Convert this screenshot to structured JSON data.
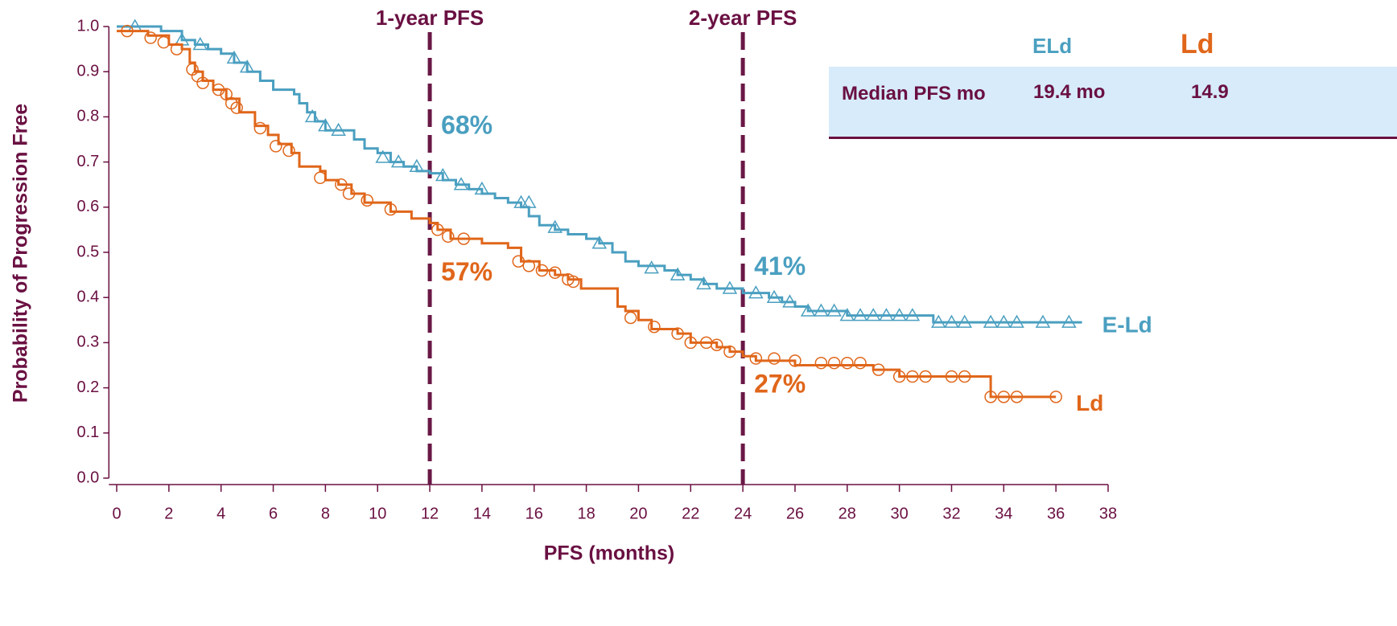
{
  "chart_data": {
    "type": "step",
    "x_label": "PFS (months)",
    "y_label": "Probability of Progression Free",
    "xlim": [
      -0.3,
      38
    ],
    "xticks": [
      0,
      2,
      4,
      6,
      8,
      10,
      12,
      14,
      16,
      18,
      20,
      22,
      24,
      26,
      28,
      30,
      32,
      34,
      36,
      38
    ],
    "ylim": [
      0,
      1
    ],
    "yticks": [
      {
        "value": 0,
        "label": "0.0"
      },
      0.1,
      0.2,
      0.3,
      0.4,
      0.5,
      0.6,
      0.7,
      0.8,
      0.9,
      {
        "value": 1,
        "label": "1.0"
      }
    ],
    "axis_color": "#6a1042",
    "reference_lines": [
      {
        "x": 12,
        "label": "1-year PFS"
      },
      {
        "x": 24,
        "label": "2-year PFS"
      }
    ],
    "series": [
      {
        "name": "E-Ld",
        "color": "#4a9fc0",
        "marker": "triangle",
        "x": [
          0,
          1.7,
          2.5,
          3,
          3.5,
          4,
          4.5,
          5,
          5.5,
          6,
          6.8,
          7,
          7.3,
          7.6,
          8,
          9.1,
          9.5,
          10,
          10.5,
          11,
          11.5,
          12,
          12.5,
          13,
          13.5,
          14,
          14.5,
          15,
          15.5,
          15.8,
          16.2,
          16.8,
          17.3,
          18,
          18.5,
          19,
          19.5,
          20,
          21,
          21.5,
          22,
          22.5,
          23,
          24,
          25,
          25.5,
          26,
          26.5,
          28,
          31.3,
          37
        ],
        "y": [
          1.0,
          0.99,
          0.97,
          0.96,
          0.95,
          0.94,
          0.92,
          0.9,
          0.88,
          0.86,
          0.85,
          0.83,
          0.81,
          0.79,
          0.77,
          0.75,
          0.73,
          0.72,
          0.7,
          0.69,
          0.68,
          0.675,
          0.66,
          0.65,
          0.64,
          0.63,
          0.62,
          0.61,
          0.6,
          0.58,
          0.56,
          0.55,
          0.54,
          0.53,
          0.52,
          0.5,
          0.48,
          0.47,
          0.46,
          0.45,
          0.44,
          0.43,
          0.42,
          0.41,
          0.4,
          0.39,
          0.38,
          0.37,
          0.36,
          0.345,
          0.345
        ],
        "censor_x": [
          0.7,
          2.5,
          3.2,
          4.5,
          5,
          7.5,
          8,
          8.5,
          10.2,
          10.8,
          11.5,
          12.5,
          13.2,
          14,
          15.5,
          15.8,
          16.8,
          18.5,
          20.5,
          21.5,
          22.5,
          23.5,
          24.5,
          25.2,
          25.8,
          26.5,
          27,
          27.5,
          28,
          28.5,
          29,
          29.5,
          30,
          30.5,
          31.5,
          32,
          32.5,
          33.5,
          34,
          34.5,
          35.5,
          36.5
        ],
        "censor_y": [
          1.0,
          0.97,
          0.96,
          0.93,
          0.91,
          0.8,
          0.78,
          0.77,
          0.71,
          0.7,
          0.69,
          0.67,
          0.65,
          0.64,
          0.61,
          0.61,
          0.555,
          0.52,
          0.465,
          0.45,
          0.43,
          0.42,
          0.41,
          0.4,
          0.39,
          0.37,
          0.37,
          0.37,
          0.36,
          0.36,
          0.36,
          0.36,
          0.36,
          0.36,
          0.345,
          0.345,
          0.345,
          0.345,
          0.345,
          0.345,
          0.345,
          0.345
        ],
        "landmark_values": [
          0.68,
          0.41
        ],
        "landmark_labels": [
          "68%",
          "41%"
        ]
      },
      {
        "name": "Ld",
        "color": "#e0661a",
        "marker": "circle",
        "x": [
          0,
          1.2,
          2,
          2.5,
          2.8,
          3,
          3.3,
          3.7,
          4.2,
          4.7,
          5.3,
          5.8,
          6.2,
          6.7,
          7,
          7.8,
          8,
          8.5,
          9,
          9.5,
          10.5,
          11.3,
          12,
          12.3,
          12.8,
          14,
          15,
          15.5,
          16.2,
          16.8,
          17.3,
          17.8,
          19,
          19.2,
          19.5,
          20,
          20.5,
          21.5,
          22,
          23,
          23.5,
          24,
          24.5,
          26,
          29,
          30,
          33.5,
          36
        ],
        "y": [
          0.99,
          0.98,
          0.96,
          0.95,
          0.92,
          0.9,
          0.88,
          0.86,
          0.84,
          0.81,
          0.78,
          0.76,
          0.74,
          0.72,
          0.69,
          0.68,
          0.66,
          0.65,
          0.63,
          0.61,
          0.59,
          0.575,
          0.565,
          0.55,
          0.53,
          0.52,
          0.51,
          0.48,
          0.46,
          0.45,
          0.44,
          0.42,
          0.42,
          0.38,
          0.37,
          0.35,
          0.33,
          0.32,
          0.3,
          0.29,
          0.28,
          0.27,
          0.26,
          0.25,
          0.24,
          0.225,
          0.18,
          0.18
        ],
        "censor_x": [
          0.4,
          1.3,
          1.8,
          2.3,
          2.9,
          3.1,
          3.3,
          3.9,
          4.2,
          4.4,
          4.6,
          5.5,
          6.1,
          6.6,
          7.8,
          8.6,
          8.9,
          9.6,
          10.5,
          12.3,
          12.7,
          13.3,
          15.4,
          15.8,
          16.3,
          16.8,
          17.3,
          17.5,
          19.7,
          20.6,
          21.5,
          22,
          22.6,
          23,
          23.5,
          24.5,
          25.2,
          26,
          27,
          27.5,
          28,
          28.5,
          29.2,
          30,
          30.5,
          31,
          32,
          32.5,
          33.5,
          34,
          34.5,
          36
        ],
        "censor_y": [
          0.99,
          0.975,
          0.965,
          0.95,
          0.905,
          0.89,
          0.875,
          0.86,
          0.85,
          0.83,
          0.82,
          0.775,
          0.735,
          0.725,
          0.665,
          0.65,
          0.63,
          0.615,
          0.595,
          0.55,
          0.535,
          0.53,
          0.48,
          0.47,
          0.46,
          0.455,
          0.44,
          0.435,
          0.355,
          0.335,
          0.32,
          0.3,
          0.3,
          0.295,
          0.28,
          0.265,
          0.265,
          0.26,
          0.255,
          0.255,
          0.255,
          0.255,
          0.24,
          0.225,
          0.225,
          0.225,
          0.225,
          0.225,
          0.18,
          0.18,
          0.18,
          0.18
        ],
        "landmark_values": [
          0.57,
          0.27
        ],
        "landmark_labels": [
          "57%",
          "27%"
        ]
      }
    ]
  },
  "table": {
    "columns": [
      "ELd",
      "Ld"
    ],
    "rows": [
      [
        "Median PFS mo",
        "19.4 mo",
        "14.9"
      ]
    ]
  }
}
